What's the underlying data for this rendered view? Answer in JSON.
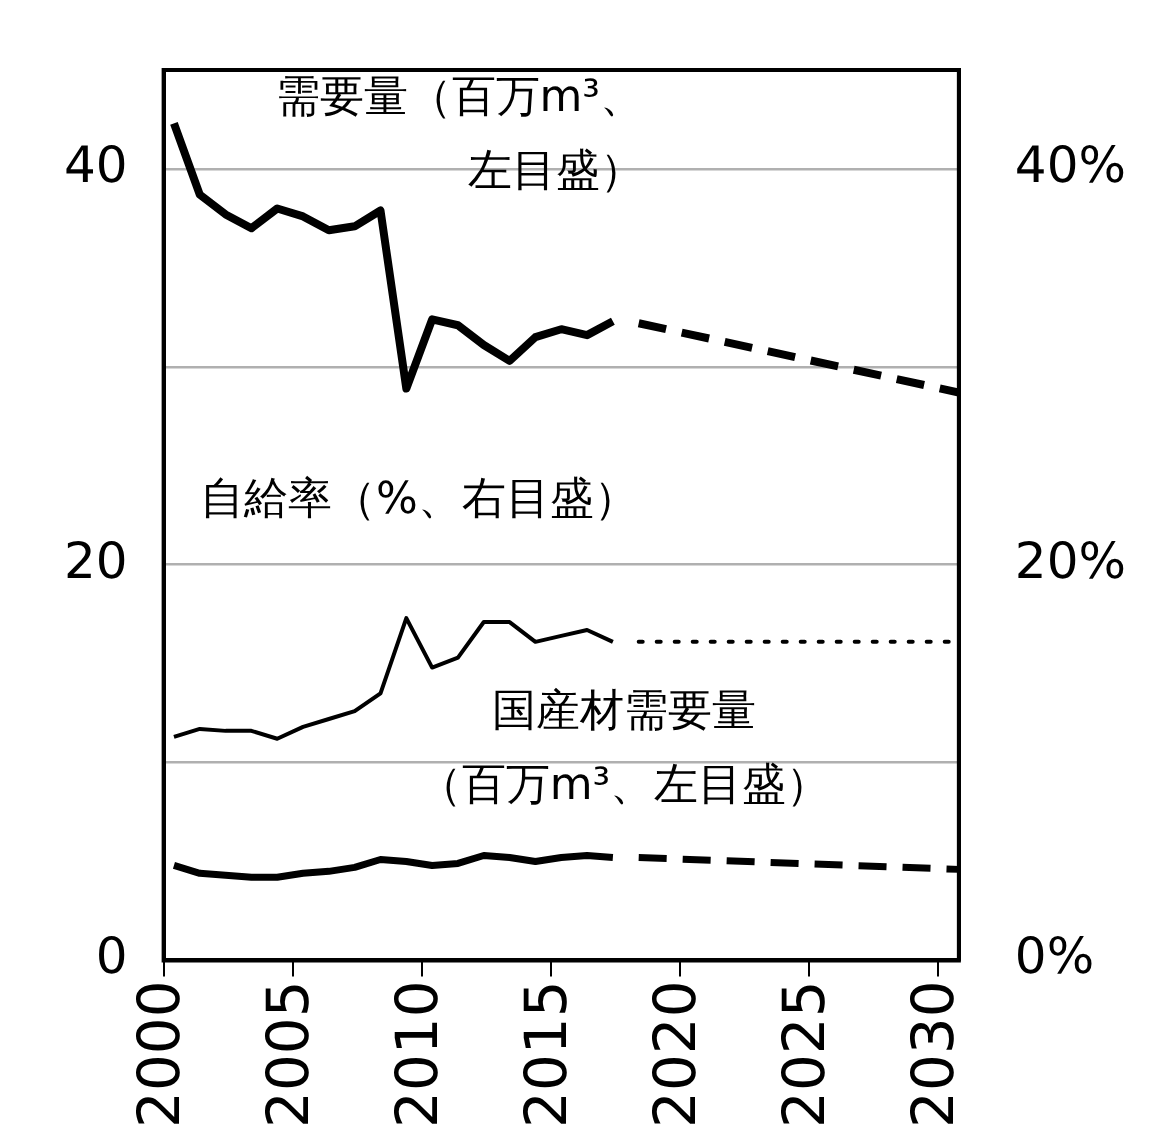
{
  "chart_data": {
    "type": "line",
    "series": [
      {
        "type": "line",
        "color": "#000000",
        "line_style": "solid",
        "axis": "y",
        "x": [
          2000.4,
          2001.4,
          2002.4,
          2003.4,
          2004.4,
          2005.4,
          2006.4,
          2007.4,
          2008.4,
          2009.4,
          2010.4,
          2011.4,
          2012.4,
          2013.4,
          2014.4,
          2015.4,
          2016.4,
          2017.4
        ],
        "values": [
          42.3,
          38.7,
          37.7,
          37.0,
          38.0,
          37.6,
          36.9,
          37.1,
          37.9,
          28.9,
          32.4,
          32.1,
          31.1,
          30.3,
          31.5,
          31.9,
          31.6,
          32.3
        ]
      },
      {
        "type": "line",
        "color": "#000000",
        "line_style": "dashed",
        "axis": "y",
        "x": [
          2018.4,
          2030.8
        ],
        "values": [
          32.2,
          28.7
        ]
      },
      {
        "type": "line",
        "color": "#000000",
        "line_style": "solid",
        "axis": "y2",
        "x": [
          2000.4,
          2001.4,
          2002.4,
          2003.4,
          2004.4,
          2005.4,
          2006.4,
          2007.4,
          2008.4,
          2009.4,
          2010.4,
          2011.4,
          2012.4,
          2013.4,
          2014.4,
          2015.4,
          2016.4,
          2017.4
        ],
        "values": [
          11.3,
          11.7,
          11.6,
          11.6,
          11.2,
          11.8,
          12.2,
          12.6,
          13.5,
          17.3,
          14.8,
          15.3,
          17.1,
          17.1,
          16.1,
          16.4,
          16.7,
          16.1
        ]
      },
      {
        "type": "line",
        "color": "#000000",
        "line_style": "dotted",
        "axis": "y2",
        "x": [
          2018.4,
          2030.8
        ],
        "values": [
          16.1,
          16.1
        ]
      },
      {
        "type": "line",
        "color": "#000000",
        "line_style": "solid",
        "axis": "y",
        "x": [
          2000.4,
          2001.4,
          2002.4,
          2003.4,
          2004.4,
          2005.4,
          2006.4,
          2007.4,
          2008.4,
          2009.4,
          2010.4,
          2011.4,
          2012.4,
          2013.4,
          2014.4,
          2015.4,
          2016.4,
          2017.4
        ],
        "values": [
          4.8,
          4.4,
          4.3,
          4.2,
          4.2,
          4.4,
          4.5,
          4.7,
          5.1,
          5.0,
          4.8,
          4.9,
          5.3,
          5.2,
          5.0,
          5.2,
          5.3,
          5.2
        ]
      },
      {
        "type": "line",
        "color": "#000000",
        "line_style": "dashed",
        "axis": "y",
        "x": [
          2018.4,
          2030.8
        ],
        "values": [
          5.2,
          4.6
        ]
      }
    ],
    "xlim": [
      2000,
      2030.8
    ],
    "xticks": [
      2000,
      2005,
      2010,
      2015,
      2020,
      2025,
      2030
    ],
    "ylim": [
      0,
      45
    ],
    "yticks": [
      0,
      {
        "value": 10,
        "label": null
      },
      20,
      {
        "value": 30,
        "label": null
      },
      40
    ],
    "y2lim": [
      0,
      45
    ],
    "y2ticks": [
      {
        "value": 0,
        "label": "0%"
      },
      {
        "value": 20,
        "label": "20%"
      },
      {
        "value": 40,
        "label": "40%"
      }
    ],
    "grid": "y",
    "legend": false,
    "marker": "none",
    "annotations": [
      "需要量（百万m³、左目盛）",
      "自給率（%、右目盛）",
      "国産材需要量（百万m³、左目盛）"
    ]
  }
}
